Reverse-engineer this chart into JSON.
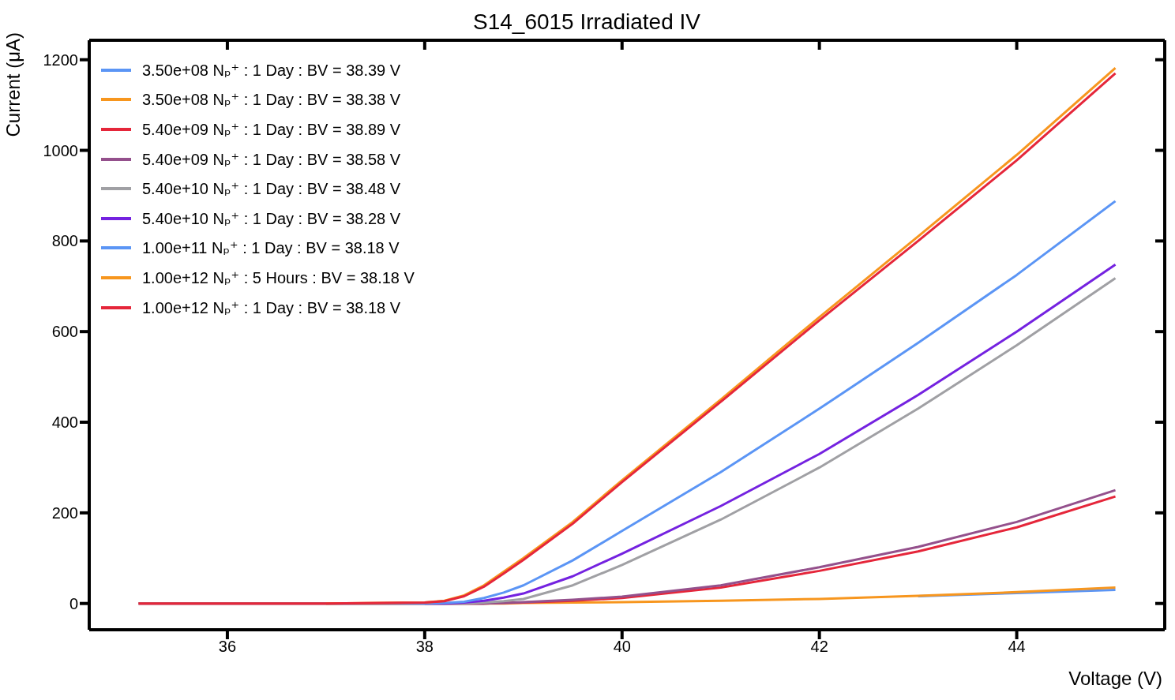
{
  "chart_data": {
    "type": "line",
    "title": "S14_6015 Irradiated IV",
    "xlabel": "Voltage (V)",
    "ylabel": "Current (μA)",
    "x": [
      35.1,
      36,
      37,
      38,
      38.2,
      38.4,
      38.6,
      38.8,
      39,
      39.5,
      40,
      41,
      42,
      43,
      44,
      45
    ],
    "xlim": [
      34.6,
      45.5
    ],
    "xticks": [
      36,
      38,
      40,
      42,
      44
    ],
    "ylim": [
      -58,
      1243
    ],
    "yticks": [
      0,
      200,
      400,
      600,
      800,
      1000,
      1200
    ],
    "grid": false,
    "legend": "top left",
    "marker": "none",
    "line_style": "solid",
    "series": [
      {
        "name": "3.50e+08 Nₚ⁺ : 1 Day : BV = 38.39 V",
        "color": "#5b95f5",
        "values": [
          null,
          null,
          null,
          0,
          0,
          0,
          0,
          null,
          null,
          null,
          null,
          null,
          null,
          16,
          23,
          30
        ]
      },
      {
        "name": "3.50e+08 Nₚ⁺ : 1 Day : BV = 38.38 V",
        "color": "#f7961e",
        "values": [
          null,
          null,
          0,
          0,
          0,
          0,
          0,
          0,
          1,
          2,
          3,
          6,
          10,
          17,
          25,
          35
        ]
      },
      {
        "name": "5.40e+09 Nₚ⁺ : 1 Day : BV = 38.89 V",
        "color": "#e5263a",
        "values": [
          0,
          0,
          0,
          0,
          0,
          0,
          0,
          1,
          2,
          6,
          12,
          35,
          72,
          115,
          168,
          236
        ]
      },
      {
        "name": "5.40e+09 Nₚ⁺ : 1 Day : BV = 38.58 V",
        "color": "#94508c",
        "values": [
          0,
          0,
          0,
          0,
          0,
          0,
          0,
          1,
          3,
          8,
          15,
          40,
          80,
          125,
          180,
          250
        ]
      },
      {
        "name": "5.40e+10 Nₚ⁺ : 1 Day : BV = 38.48 V",
        "color": "#a0a0a4",
        "values": [
          0,
          0,
          0,
          0,
          0,
          0,
          2,
          5,
          10,
          40,
          85,
          185,
          300,
          430,
          570,
          718
        ]
      },
      {
        "name": "5.40e+10 Nₚ⁺ : 1 Day : BV = 38.28 V",
        "color": "#7422e0",
        "values": [
          null,
          null,
          null,
          0,
          0,
          2,
          6,
          13,
          22,
          60,
          110,
          215,
          330,
          460,
          600,
          748
        ]
      },
      {
        "name": "1.00e+11 Nₚ⁺ : 1 Day : BV = 38.18 V",
        "color": "#5b95f5",
        "values": [
          null,
          null,
          0,
          0,
          1,
          4,
          12,
          24,
          40,
          95,
          160,
          290,
          430,
          575,
          725,
          888
        ]
      },
      {
        "name": "1.00e+12 Nₚ⁺ : 5 Hours : BV = 38.18 V",
        "color": "#f7961e",
        "values": [
          null,
          null,
          0,
          2,
          6,
          18,
          40,
          70,
          100,
          180,
          272,
          450,
          632,
          810,
          990,
          1182
        ]
      },
      {
        "name": "1.00e+12 Nₚ⁺ : 1 Day : BV = 38.18 V",
        "color": "#e5263a",
        "values": [
          0,
          0,
          0,
          2,
          5,
          16,
          37,
          66,
          96,
          176,
          268,
          445,
          625,
          800,
          978,
          1170
        ]
      }
    ]
  }
}
